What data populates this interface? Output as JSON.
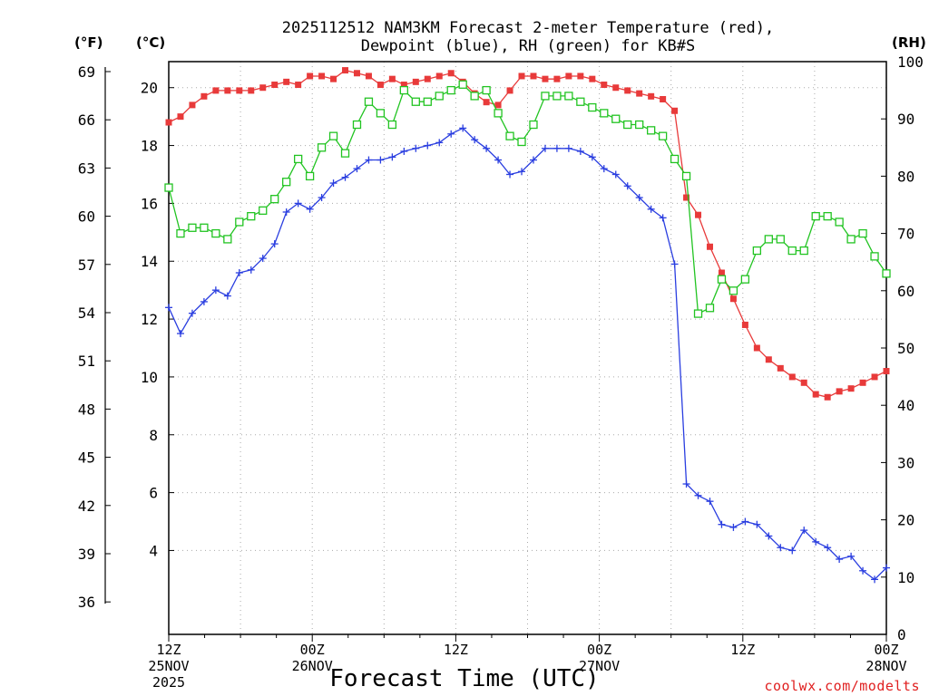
{
  "chart_data": {
    "type": "line",
    "title_line1": "2025112512 NAM3KM Forecast 2-meter Temperature (red),",
    "title_line2": "Dewpoint (blue), RH (green) for KB#S",
    "unit_f": "(°F)",
    "unit_c": "(°C)",
    "unit_rh": "(RH)",
    "xlabel": "Forecast Time (UTC)",
    "credit": "coolwx.com/modelts",
    "x_range_hours": [
      0,
      60
    ],
    "c_range": [
      1.1,
      20.9
    ],
    "rh_range": [
      0,
      100
    ],
    "f_ticks": [
      "69",
      "66",
      "63",
      "60",
      "57",
      "54",
      "51",
      "48",
      "45",
      "42",
      "39",
      "36"
    ],
    "c_ticks": [
      "20",
      "18",
      "16",
      "14",
      "12",
      "10",
      "8",
      "6",
      "4"
    ],
    "rh_ticks": [
      "100",
      "90",
      "80",
      "70",
      "60",
      "50",
      "40",
      "30",
      "20",
      "10",
      "0"
    ],
    "x_ticks": [
      {
        "hour": 0,
        "line1": "12Z",
        "line2": "25NOV",
        "line3": "2025"
      },
      {
        "hour": 12,
        "line1": "00Z",
        "line2": "26NOV",
        "line3": ""
      },
      {
        "hour": 24,
        "line1": "12Z",
        "line2": "",
        "line3": ""
      },
      {
        "hour": 36,
        "line1": "00Z",
        "line2": "27NOV",
        "line3": ""
      },
      {
        "hour": 48,
        "line1": "12Z",
        "line2": "",
        "line3": ""
      },
      {
        "hour": 60,
        "line1": "00Z",
        "line2": "28NOV",
        "line3": ""
      }
    ],
    "series": [
      {
        "name": "2-meter Temperature (°C)",
        "color": "#e83a3a",
        "marker": "filled-square",
        "axis": "celsius",
        "values": [
          18.8,
          19.0,
          19.4,
          19.7,
          19.9,
          19.9,
          19.9,
          19.9,
          20.0,
          20.1,
          20.2,
          20.1,
          20.4,
          20.4,
          20.3,
          20.6,
          20.5,
          20.4,
          20.1,
          20.3,
          20.1,
          20.2,
          20.3,
          20.4,
          20.5,
          20.2,
          19.8,
          19.5,
          19.4,
          19.9,
          20.4,
          20.4,
          20.3,
          20.3,
          20.4,
          20.4,
          20.3,
          20.1,
          20.0,
          19.9,
          19.8,
          19.7,
          19.6,
          19.2,
          16.2,
          15.6,
          14.5,
          13.6,
          12.7,
          11.8,
          11.0,
          10.6,
          10.3,
          10.0,
          9.8,
          9.4,
          9.3,
          9.5,
          9.6,
          9.8,
          10.0,
          10.2
        ]
      },
      {
        "name": "Dewpoint (°C)",
        "color": "#2a3ee0",
        "marker": "plus",
        "axis": "celsius",
        "values": [
          12.4,
          11.5,
          12.2,
          12.6,
          13.0,
          12.8,
          13.6,
          13.7,
          14.1,
          14.6,
          15.7,
          16.0,
          15.8,
          16.2,
          16.7,
          16.9,
          17.2,
          17.5,
          17.5,
          17.6,
          17.8,
          17.9,
          18.0,
          18.1,
          18.4,
          18.6,
          18.2,
          17.9,
          17.5,
          17.0,
          17.1,
          17.5,
          17.9,
          17.9,
          17.9,
          17.8,
          17.6,
          17.2,
          17.0,
          16.6,
          16.2,
          15.8,
          15.5,
          13.9,
          6.3,
          5.9,
          5.7,
          4.9,
          4.8,
          5.0,
          4.9,
          4.5,
          4.1,
          4.0,
          4.7,
          4.3,
          4.1,
          3.7,
          3.8,
          3.3,
          3.0,
          3.4
        ]
      },
      {
        "name": "RH (%)",
        "color": "#22c422",
        "marker": "open-square",
        "axis": "rh",
        "values": [
          78,
          70,
          71,
          71,
          70,
          69,
          72,
          73,
          74,
          76,
          79,
          83,
          80,
          85,
          87,
          84,
          89,
          93,
          91,
          89,
          95,
          93,
          93,
          94,
          95,
          96,
          94,
          95,
          91,
          87,
          86,
          89,
          94,
          94,
          94,
          93,
          92,
          91,
          90,
          89,
          89,
          88,
          87,
          83,
          80,
          56,
          57,
          62,
          60,
          62,
          67,
          69,
          69,
          67,
          67,
          73,
          73,
          72,
          69,
          70,
          66,
          63
        ]
      }
    ]
  }
}
